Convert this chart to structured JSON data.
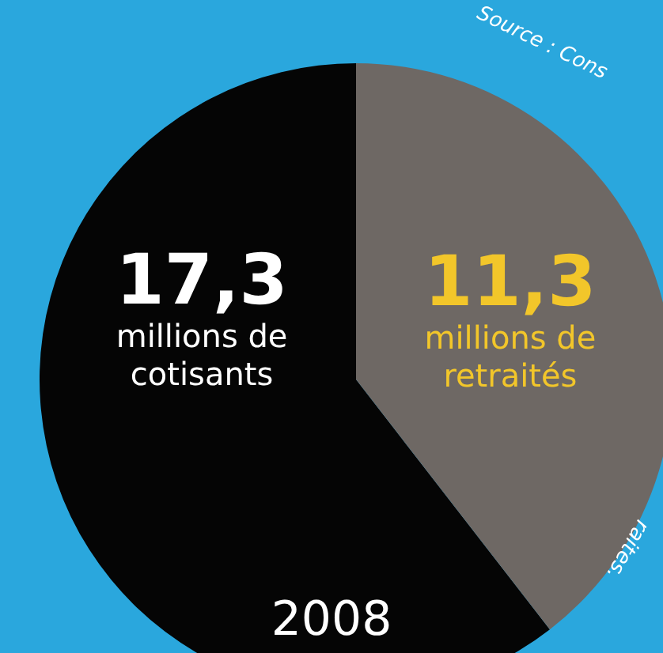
{
  "chart_data": {
    "type": "pie",
    "title": "2008",
    "categories": [
      "millions de cotisants",
      "millions de retraités"
    ],
    "values": [
      17.3,
      11.3
    ],
    "value_labels": [
      "17,3",
      "11,3"
    ],
    "colors": [
      "#050505",
      "#6e6864"
    ],
    "data_labels": true,
    "legend": false,
    "annotations": [
      "Source : Cons",
      "raites."
    ]
  }
}
